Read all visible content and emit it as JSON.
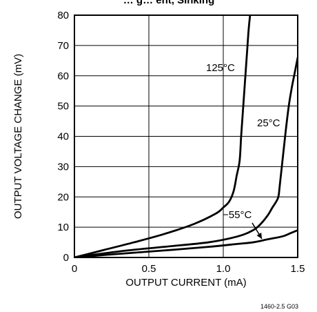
{
  "chart_data": {
    "type": "line",
    "title": "… g… ent, Sinking",
    "xlabel": "OUTPUT CURRENT (mA)",
    "ylabel": "OUTPUT VOLTAGE CHANGE (mV)",
    "xlim": [
      0,
      1.5
    ],
    "ylim": [
      0,
      80
    ],
    "xticks": [
      0,
      0.5,
      1.0,
      1.5
    ],
    "xtick_labels": [
      "0",
      "0.5",
      "1.0",
      "1.5"
    ],
    "yticks": [
      0,
      10,
      20,
      30,
      40,
      50,
      60,
      70,
      80
    ],
    "ytick_labels": [
      "0",
      "10",
      "20",
      "30",
      "40",
      "50",
      "60",
      "70",
      "80"
    ],
    "grid": true,
    "legend": "none",
    "series": [
      {
        "name": "125°C",
        "label_text": "125°C",
        "x": [
          0,
          0.2,
          0.4,
          0.6,
          0.8,
          0.95,
          1.0,
          1.04,
          1.07,
          1.09,
          1.11,
          1.12,
          1.13,
          1.14,
          1.15,
          1.16,
          1.17,
          1.18
        ],
        "y": [
          0,
          2.5,
          5.0,
          7.7,
          11.0,
          14.5,
          16.5,
          18.5,
          22.0,
          27.0,
          32.0,
          40.0,
          47.0,
          54.0,
          61.0,
          68.0,
          75.0,
          80.0
        ]
      },
      {
        "name": "25°C",
        "label_text": "25°C",
        "x": [
          0,
          0.3,
          0.6,
          0.9,
          1.1,
          1.2,
          1.25,
          1.3,
          1.33,
          1.35,
          1.37,
          1.38,
          1.4,
          1.42,
          1.44,
          1.46,
          1.48,
          1.5
        ],
        "y": [
          0,
          2.0,
          3.5,
          5.0,
          7.0,
          9.0,
          11.0,
          14.0,
          16.5,
          18.0,
          20.0,
          24.0,
          33.0,
          42.0,
          50.0,
          56.0,
          61.0,
          66.0
        ]
      },
      {
        "name": "−55°C",
        "label_text": "−55°C",
        "x": [
          0,
          0.3,
          0.6,
          0.9,
          1.1,
          1.2,
          1.3,
          1.4,
          1.45,
          1.5
        ],
        "y": [
          0,
          1.2,
          2.3,
          3.5,
          4.5,
          5.0,
          6.0,
          7.0,
          8.0,
          9.0
        ]
      }
    ],
    "annotations": [
      {
        "text": "125°C",
        "target_series": "125°C"
      },
      {
        "text": "25°C",
        "target_series": "25°C"
      },
      {
        "text": "−55°C",
        "target_series": "−55°C",
        "arrow": true
      }
    ],
    "figure_id": "1460-2.5 G03"
  }
}
